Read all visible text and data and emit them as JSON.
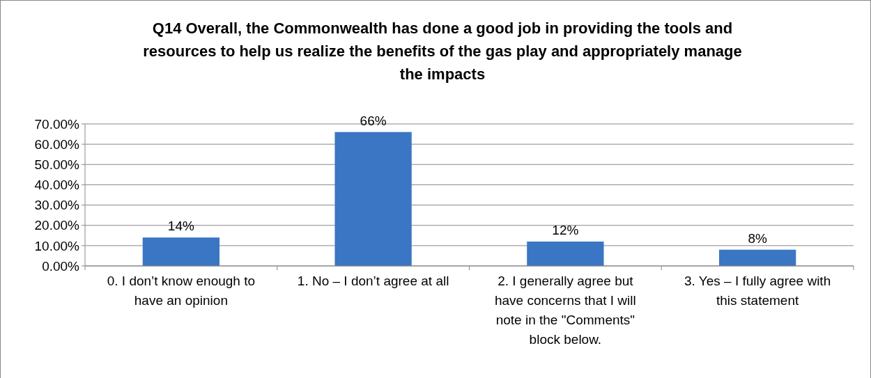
{
  "chart_data": {
    "type": "bar",
    "title": "Q14 Overall, the Commonwealth has done a good job in providing the tools and resources to help us realize the benefits of the gas play and appropriately manage the impacts",
    "categories": [
      "0. I don’t know enough to have an opinion",
      "1. No – I don’t agree at all",
      "2. I generally agree but have concerns that I will note in the \"Comments\" block below.",
      "3. Yes – I fully agree with this statement"
    ],
    "values": [
      14,
      66,
      12,
      8
    ],
    "value_labels": [
      "14%",
      "66%",
      "12%",
      "8%"
    ],
    "color": "#3a76c4",
    "ylim": [
      0,
      70
    ],
    "yticks": [
      {
        "value": 0,
        "label": "0.00%"
      },
      {
        "value": 10,
        "label": "10.00%"
      },
      {
        "value": 20,
        "label": "20.00%"
      },
      {
        "value": 30,
        "label": "30.00%"
      },
      {
        "value": 40,
        "label": "40.00%"
      },
      {
        "value": 50,
        "label": "50.00%"
      },
      {
        "value": 60,
        "label": "60.00%"
      },
      {
        "value": 70,
        "label": "70.00%"
      }
    ],
    "grid": "y"
  }
}
